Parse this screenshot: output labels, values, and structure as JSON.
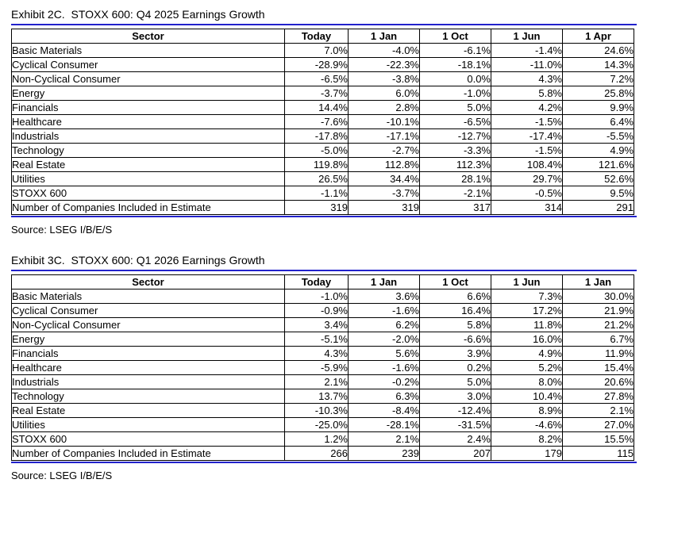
{
  "accent_color": "#2222cc",
  "tables": [
    {
      "title": "Exhibit 2C.  STOXX 600: Q4 2025 Earnings Growth",
      "source": "Source: LSEG I/B/E/S",
      "columns": [
        "Sector",
        "Today",
        "1 Jan",
        "1 Oct",
        "1 Jun",
        "1 Apr"
      ],
      "rows": [
        [
          "Basic Materials",
          "7.0%",
          "-4.0%",
          "-6.1%",
          "-1.4%",
          "24.6%"
        ],
        [
          "Cyclical Consumer",
          "-28.9%",
          "-22.3%",
          "-18.1%",
          "-11.0%",
          "14.3%"
        ],
        [
          "Non-Cyclical Consumer",
          "-6.5%",
          "-3.8%",
          "0.0%",
          "4.3%",
          "7.2%"
        ],
        [
          "Energy",
          "-3.7%",
          "6.0%",
          "-1.0%",
          "5.8%",
          "25.8%"
        ],
        [
          "Financials",
          "14.4%",
          "2.8%",
          "5.0%",
          "4.2%",
          "9.9%"
        ],
        [
          "Healthcare",
          "-7.6%",
          "-10.1%",
          "-6.5%",
          "-1.5%",
          "6.4%"
        ],
        [
          "Industrials",
          "-17.8%",
          "-17.1%",
          "-12.7%",
          "-17.4%",
          "-5.5%"
        ],
        [
          "Technology",
          "-5.0%",
          "-2.7%",
          "-3.3%",
          "-1.5%",
          "4.9%"
        ],
        [
          "Real Estate",
          "119.8%",
          "112.8%",
          "112.3%",
          "108.4%",
          "121.6%"
        ],
        [
          "Utilities",
          "26.5%",
          "34.4%",
          "28.1%",
          "29.7%",
          "52.6%"
        ],
        [
          "STOXX 600",
          "-1.1%",
          "-3.7%",
          "-2.1%",
          "-0.5%",
          "9.5%"
        ],
        [
          "Number of Companies Included in Estimate",
          "319",
          "319",
          "317",
          "314",
          "291"
        ]
      ]
    },
    {
      "title": "Exhibit 3C.  STOXX 600: Q1 2026 Earnings Growth",
      "source": "Source: LSEG I/B/E/S",
      "columns": [
        "Sector",
        "Today",
        "1 Jan",
        "1 Oct",
        "1 Jun",
        "1 Jan"
      ],
      "rows": [
        [
          "Basic Materials",
          "-1.0%",
          "3.6%",
          "6.6%",
          "7.3%",
          "30.0%"
        ],
        [
          "Cyclical Consumer",
          "-0.9%",
          "-1.6%",
          "16.4%",
          "17.2%",
          "21.9%"
        ],
        [
          "Non-Cyclical Consumer",
          "3.4%",
          "6.2%",
          "5.8%",
          "11.8%",
          "21.2%"
        ],
        [
          "Energy",
          "-5.1%",
          "-2.0%",
          "-6.6%",
          "16.0%",
          "6.7%"
        ],
        [
          "Financials",
          "4.3%",
          "5.6%",
          "3.9%",
          "4.9%",
          "11.9%"
        ],
        [
          "Healthcare",
          "-5.9%",
          "-1.6%",
          "0.2%",
          "5.2%",
          "15.4%"
        ],
        [
          "Industrials",
          "2.1%",
          "-0.2%",
          "5.0%",
          "8.0%",
          "20.6%"
        ],
        [
          "Technology",
          "13.7%",
          "6.3%",
          "3.0%",
          "10.4%",
          "27.8%"
        ],
        [
          "Real Estate",
          "-10.3%",
          "-8.4%",
          "-12.4%",
          "8.9%",
          "2.1%"
        ],
        [
          "Utilities",
          "-25.0%",
          "-28.1%",
          "-31.5%",
          "-4.6%",
          "27.0%"
        ],
        [
          "STOXX 600",
          "1.2%",
          "2.1%",
          "2.4%",
          "8.2%",
          "15.5%"
        ],
        [
          "Number of Companies Included in Estimate",
          "266",
          "239",
          "207",
          "179",
          "115"
        ]
      ]
    }
  ]
}
